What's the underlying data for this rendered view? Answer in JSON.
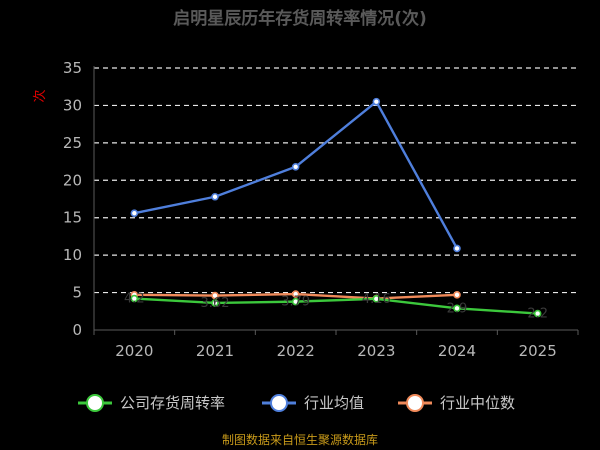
{
  "chart_data": {
    "type": "line",
    "title": "启明星辰历年存货周转率情况(次)",
    "ylabel": "次",
    "categories": [
      "2020",
      "2021",
      "2022",
      "2023",
      "2024",
      "2025"
    ],
    "ylim": [
      0,
      35
    ],
    "yticks": [
      0,
      5,
      10,
      15,
      20,
      25,
      30,
      35
    ],
    "grid": true,
    "legend_position": "bottom",
    "series": [
      {
        "name": "公司存货周转率",
        "color": "#3cc83c",
        "values": [
          4.2,
          3.62,
          3.79,
          4.16,
          2.9,
          2.2
        ],
        "labels": [
          "4.2",
          "3.62",
          "3.79",
          "4.16",
          "2.9",
          "2.2"
        ]
      },
      {
        "name": "行业均值",
        "color": "#4f7fdc",
        "values": [
          15.6,
          17.8,
          21.8,
          30.5,
          10.9,
          null
        ],
        "labels": []
      },
      {
        "name": "行业中位数",
        "color": "#f08a5a",
        "values": [
          4.7,
          4.6,
          4.8,
          4.2,
          4.7,
          null
        ],
        "labels": []
      }
    ],
    "source": "制图数据来自恒生聚源数据库"
  }
}
